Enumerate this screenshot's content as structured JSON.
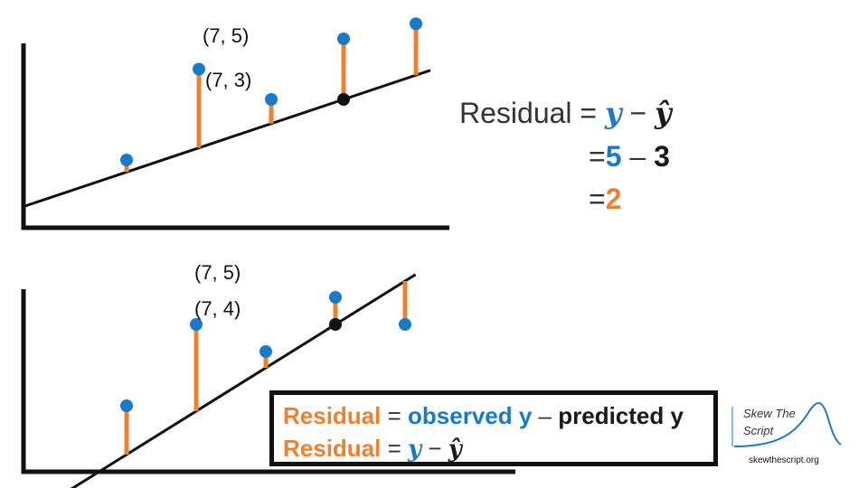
{
  "top_plot": {
    "points": [
      {
        "x": 1,
        "y": 1
      },
      {
        "x": 3,
        "y": 4
      },
      {
        "x": 5,
        "y": 3
      },
      {
        "x": 7,
        "y": 5
      },
      {
        "x": 9,
        "y": 5.5
      }
    ],
    "predicted_point": {
      "x": 7,
      "y": 3
    },
    "observed_label": "(7, 5)",
    "predicted_label": "(7, 3)",
    "line": {
      "slope": 0.4,
      "intercept": 0.2
    }
  },
  "bottom_plot": {
    "points": [
      {
        "x": 1,
        "y": 1
      },
      {
        "x": 3,
        "y": 4
      },
      {
        "x": 5,
        "y": 3
      },
      {
        "x": 7,
        "y": 5
      },
      {
        "x": 9,
        "y": 4
      }
    ],
    "predicted_point": {
      "x": 7,
      "y": 4
    },
    "observed_label": "(7, 5)",
    "predicted_label": "(7, 4)",
    "line": {
      "slope": 0.8,
      "intercept": -1.6
    }
  },
  "equation": {
    "line1_prefix": "Residual = ",
    "y": "y",
    "minus": " − ",
    "y_hat": "ŷ",
    "eq_sign": "=",
    "observed_value": "5",
    "minus_dash": " – ",
    "predicted_value": "3",
    "result": "2"
  },
  "definition": {
    "residual_word": "Residual",
    "eq": " = ",
    "observed": "observed y",
    "dash": " – ",
    "predicted": "predicted y",
    "residual_word2": "Residual",
    "eq2": " = ",
    "y": "y",
    "minus": " − ",
    "y_hat": "ŷ"
  },
  "logo": {
    "line1": "Skew The",
    "line2": "Script",
    "url": "skewthescript.org"
  },
  "colors": {
    "blue": "#1a7ac9",
    "orange": "#ee8131",
    "black": "#111111"
  }
}
